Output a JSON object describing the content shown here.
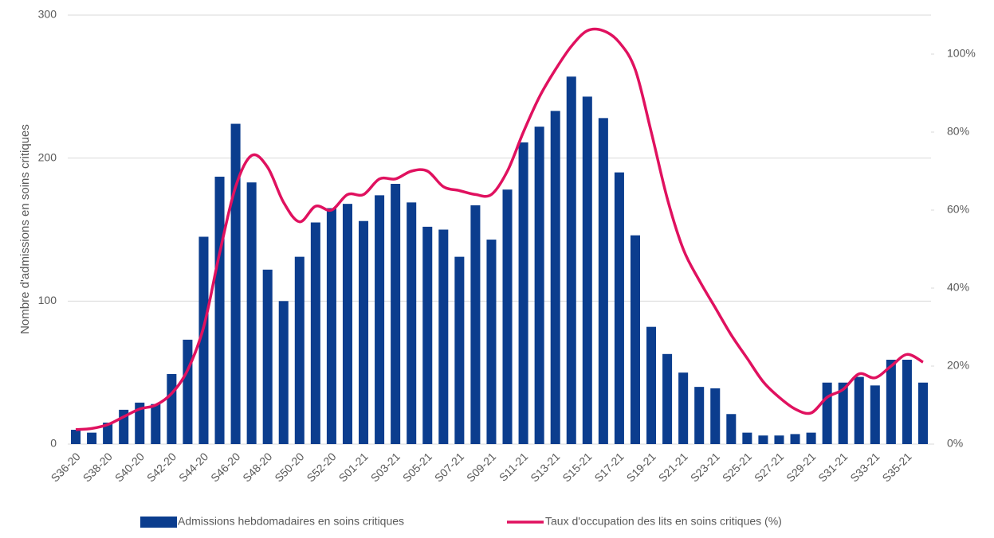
{
  "chart_data": {
    "type": "bar_line",
    "y_axis_label": "Nombre d'admissions en soins critiques",
    "categories": [
      "S36-20",
      null,
      "S38-20",
      null,
      "S40-20",
      null,
      "S42-20",
      null,
      "S44-20",
      null,
      "S46-20",
      null,
      "S48-20",
      null,
      "S50-20",
      null,
      "S52-20",
      null,
      "S01-21",
      null,
      "S03-21",
      null,
      "S05-21",
      null,
      "S07-21",
      null,
      "S09-21",
      null,
      "S11-21",
      null,
      "S13-21",
      null,
      "S15-21",
      null,
      "S17-21",
      null,
      "S19-21",
      null,
      "S21-21",
      null,
      "S23-21",
      null,
      "S25-21",
      null,
      "S27-21",
      null,
      "S29-21",
      null,
      "S31-21",
      null,
      "S33-21",
      null,
      "S35-21",
      null
    ],
    "series": [
      {
        "name": "Admissions hebdomadaires en soins critiques",
        "color": "#0b3d8e",
        "kind": "bar",
        "values": [
          10,
          8,
          15,
          24,
          29,
          28,
          49,
          73,
          145,
          187,
          224,
          183,
          122,
          100,
          131,
          155,
          165,
          168,
          156,
          174,
          182,
          169,
          152,
          150,
          131,
          167,
          143,
          178,
          211,
          222,
          233,
          257,
          243,
          228,
          190,
          146,
          82,
          63,
          50,
          40,
          39,
          21,
          8,
          6,
          6,
          7,
          8,
          43,
          43,
          47,
          41,
          59,
          59,
          43
        ]
      },
      {
        "name": "Taux d'occupation des lits en soins critiques (%)",
        "color": "#e0115f",
        "kind": "line",
        "axis": "y2",
        "values": [
          3.7,
          4,
          5,
          7,
          9,
          10,
          13,
          19,
          30,
          49,
          66,
          74,
          71,
          62,
          57,
          61,
          60,
          64,
          64,
          68,
          68,
          70,
          70,
          66,
          65,
          64,
          64,
          70,
          80,
          89,
          96,
          102,
          106,
          106,
          103,
          96,
          80,
          63,
          50,
          42,
          35,
          28,
          22,
          16,
          12,
          9,
          8,
          12,
          14,
          18,
          17,
          20,
          23,
          21
        ]
      }
    ],
    "ylim": [
      0,
      300
    ],
    "yticks": [
      0,
      100,
      200,
      300
    ],
    "y2lim": [
      0,
      110
    ],
    "y2ticks": [
      {
        "value": 0,
        "label": "0%"
      },
      {
        "value": 20,
        "label": "20%"
      },
      {
        "value": 40,
        "label": "40%"
      },
      {
        "value": 60,
        "label": "60%"
      },
      {
        "value": 80,
        "label": "80%"
      },
      {
        "value": 100,
        "label": "100%"
      }
    ],
    "grid": true,
    "legend": "bottom"
  }
}
